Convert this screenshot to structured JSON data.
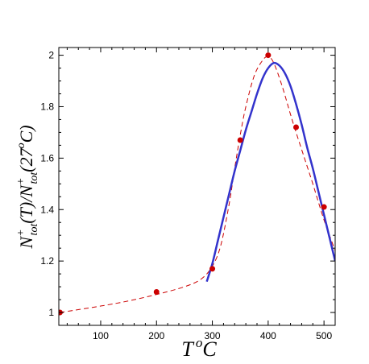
{
  "chart_data": {
    "type": "scatter",
    "title": "",
    "xlabel": {
      "base": "T",
      "sup": "o",
      "unit": "C"
    },
    "ylabel": {
      "part1_base": "N",
      "part1_sup": "+",
      "part1_sub": "tot",
      "part1_arg": "(T)/",
      "part2_base": "N",
      "part2_sup": "+",
      "part2_sub": "tot",
      "part2_arg_open": "(27",
      "part2_arg_sup": "o",
      "part2_arg_close": "C)"
    },
    "xlim": [
      25,
      520
    ],
    "ylim": [
      0.95,
      2.03
    ],
    "xticks": [
      100,
      200,
      300,
      400,
      500
    ],
    "yticks": [
      1,
      1.2,
      1.4,
      1.6,
      1.8,
      2
    ],
    "xtick_labels": [
      "100",
      "200",
      "300",
      "400",
      "500"
    ],
    "ytick_labels": [
      "1",
      "1.2",
      "1.4",
      "1.6",
      "1.8",
      "2"
    ],
    "grid": false,
    "series": [
      {
        "type": "scatter",
        "color": "#cc0000",
        "x": [
          27,
          200,
          300,
          350,
          400,
          450,
          500
        ],
        "y": [
          1.0,
          1.08,
          1.17,
          1.67,
          2.0,
          1.72,
          1.41
        ]
      },
      {
        "type": "line",
        "style": "dashed",
        "color": "#cc0000",
        "x": [
          27,
          100,
          150,
          200,
          250,
          280,
          300,
          315,
          330,
          340,
          350,
          360,
          375,
          390,
          400,
          410,
          425,
          440,
          450,
          465,
          480,
          500,
          520
        ],
        "y": [
          1.0,
          1.025,
          1.045,
          1.07,
          1.1,
          1.13,
          1.18,
          1.26,
          1.42,
          1.56,
          1.69,
          1.8,
          1.92,
          1.98,
          1.995,
          1.97,
          1.88,
          1.77,
          1.7,
          1.6,
          1.5,
          1.36,
          1.24
        ]
      },
      {
        "type": "line",
        "style": "solid",
        "color": "#3333cc",
        "x": [
          290,
          300,
          310,
          320,
          330,
          340,
          350,
          360,
          370,
          380,
          390,
          400,
          410,
          420,
          430,
          440,
          450,
          460,
          470,
          480,
          490,
          500,
          510,
          520
        ],
        "y": [
          1.12,
          1.19,
          1.28,
          1.37,
          1.46,
          1.55,
          1.63,
          1.71,
          1.78,
          1.85,
          1.91,
          1.95,
          1.97,
          1.96,
          1.93,
          1.88,
          1.81,
          1.73,
          1.64,
          1.56,
          1.47,
          1.38,
          1.29,
          1.2
        ]
      }
    ]
  }
}
